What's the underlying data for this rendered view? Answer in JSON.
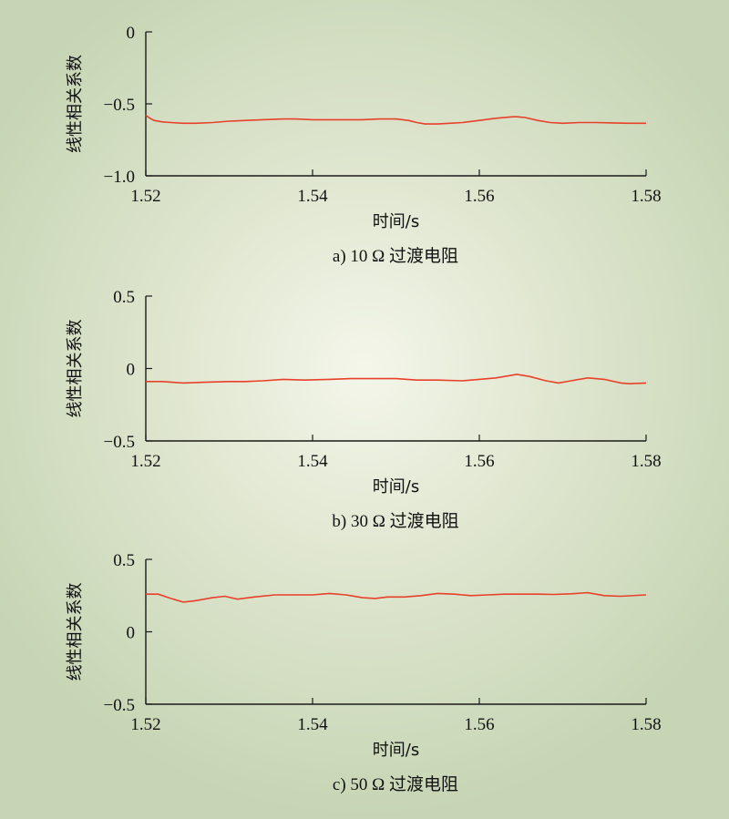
{
  "chart_data": [
    {
      "type": "line",
      "caption": "a) 10 Ω 过渡电阻",
      "xlabel": "时间/s",
      "ylabel": "线性相关系数",
      "xlim": [
        1.52,
        1.58
      ],
      "ylim": [
        -1.0,
        0
      ],
      "xticks": [
        "1.52",
        "1.54",
        "1.56",
        "1.58"
      ],
      "yticks": [
        {
          "value": 0,
          "label": "0"
        },
        {
          "value": -0.5,
          "label": "−0.5"
        },
        {
          "value": -1.0,
          "label": "−1.0"
        }
      ],
      "series": [
        {
          "color": "#e8402a",
          "x": [
            1.52,
            1.5205,
            1.521,
            1.522,
            1.523,
            1.5245,
            1.526,
            1.528,
            1.53,
            1.532,
            1.534,
            1.5365,
            1.538,
            1.54,
            1.542,
            1.544,
            1.546,
            1.548,
            1.55,
            1.5515,
            1.5525,
            1.5535,
            1.555,
            1.5565,
            1.558,
            1.56,
            1.562,
            1.564,
            1.5645,
            1.5655,
            1.567,
            1.5685,
            1.57,
            1.572,
            1.574,
            1.576,
            1.578,
            1.58
          ],
          "y": [
            -0.58,
            -0.6,
            -0.615,
            -0.625,
            -0.63,
            -0.635,
            -0.635,
            -0.63,
            -0.62,
            -0.615,
            -0.61,
            -0.605,
            -0.605,
            -0.61,
            -0.61,
            -0.61,
            -0.61,
            -0.605,
            -0.605,
            -0.615,
            -0.63,
            -0.64,
            -0.64,
            -0.635,
            -0.63,
            -0.615,
            -0.6,
            -0.59,
            -0.59,
            -0.595,
            -0.615,
            -0.63,
            -0.635,
            -0.63,
            -0.63,
            -0.632,
            -0.635,
            -0.635
          ]
        }
      ]
    },
    {
      "type": "line",
      "caption": "b) 30 Ω 过渡电阻",
      "xlabel": "时间/s",
      "ylabel": "线性相关系数",
      "xlim": [
        1.52,
        1.58
      ],
      "ylim": [
        -0.5,
        0.5
      ],
      "xticks": [
        "1.52",
        "1.54",
        "1.56",
        "1.58"
      ],
      "yticks": [
        {
          "value": 0.5,
          "label": "0.5"
        },
        {
          "value": 0,
          "label": "0"
        },
        {
          "value": -0.5,
          "label": "−0.5"
        }
      ],
      "series": [
        {
          "color": "#e8402a",
          "x": [
            1.52,
            1.522,
            1.5245,
            1.527,
            1.53,
            1.532,
            1.534,
            1.5365,
            1.539,
            1.542,
            1.5445,
            1.547,
            1.55,
            1.5525,
            1.555,
            1.558,
            1.56,
            1.562,
            1.5645,
            1.566,
            1.568,
            1.5695,
            1.571,
            1.573,
            1.575,
            1.577,
            1.578,
            1.58
          ],
          "y": [
            -0.09,
            -0.09,
            -0.1,
            -0.095,
            -0.09,
            -0.09,
            -0.085,
            -0.075,
            -0.08,
            -0.075,
            -0.07,
            -0.07,
            -0.07,
            -0.08,
            -0.08,
            -0.085,
            -0.075,
            -0.065,
            -0.04,
            -0.055,
            -0.085,
            -0.1,
            -0.085,
            -0.065,
            -0.075,
            -0.1,
            -0.105,
            -0.1
          ]
        }
      ]
    },
    {
      "type": "line",
      "caption": "c) 50 Ω 过渡电阻",
      "xlabel": "时间/s",
      "ylabel": "线性相关系数",
      "xlim": [
        1.52,
        1.58
      ],
      "ylim": [
        -0.5,
        0.5
      ],
      "xticks": [
        "1.52",
        "1.54",
        "1.56",
        "1.58"
      ],
      "yticks": [
        {
          "value": 0.5,
          "label": "0.5"
        },
        {
          "value": 0,
          "label": "0"
        },
        {
          "value": -0.5,
          "label": "−0.5"
        }
      ],
      "series": [
        {
          "color": "#e8402a",
          "x": [
            1.52,
            1.5215,
            1.523,
            1.5245,
            1.526,
            1.528,
            1.5295,
            1.531,
            1.533,
            1.5355,
            1.538,
            1.54,
            1.542,
            1.544,
            1.546,
            1.5475,
            1.549,
            1.551,
            1.553,
            1.555,
            1.557,
            1.559,
            1.561,
            1.563,
            1.565,
            1.567,
            1.569,
            1.571,
            1.573,
            1.575,
            1.577,
            1.58
          ],
          "y": [
            0.26,
            0.26,
            0.23,
            0.205,
            0.215,
            0.235,
            0.245,
            0.225,
            0.24,
            0.255,
            0.255,
            0.255,
            0.265,
            0.255,
            0.235,
            0.23,
            0.24,
            0.24,
            0.25,
            0.265,
            0.26,
            0.25,
            0.255,
            0.26,
            0.26,
            0.26,
            0.258,
            0.262,
            0.27,
            0.25,
            0.245,
            0.255
          ]
        }
      ]
    }
  ]
}
